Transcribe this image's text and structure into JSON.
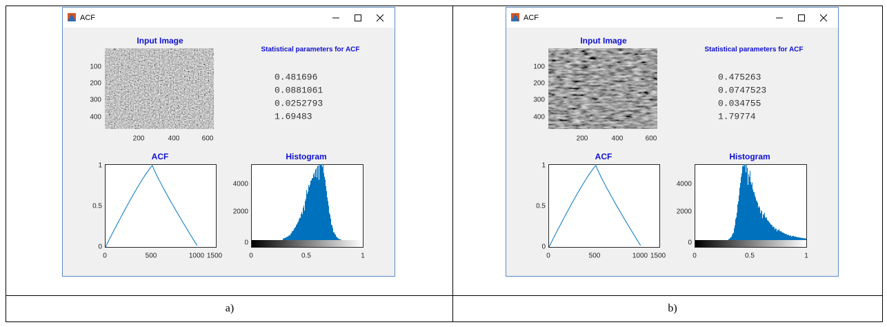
{
  "panels": [
    {
      "window_title": "ACF",
      "image_title": "Input Image",
      "image_yticks": [
        100,
        200,
        300,
        400
      ],
      "image_xticks": [
        200,
        400,
        600
      ],
      "stats_title": "Statistical parameters for ACF",
      "stats": [
        0.481696,
        0.0881061,
        0.0252793,
        1.69483
      ],
      "acf_title": "ACF",
      "acf_yticks": [
        1,
        0.5,
        0
      ],
      "acf_xticks": [
        0,
        500,
        1000,
        1500
      ],
      "hist_title": "Histogram",
      "hist_yticks": [
        4000,
        2000,
        0
      ],
      "hist_xticks": [
        0,
        0.5,
        1
      ],
      "caption": "a)"
    },
    {
      "window_title": "ACF",
      "image_title": "Input Image",
      "image_yticks": [
        100,
        200,
        300,
        400
      ],
      "image_xticks": [
        200,
        400,
        600
      ],
      "stats_title": "Statistical parameters for ACF",
      "stats": [
        0.475263,
        0.0747523,
        0.034755,
        1.79774
      ],
      "acf_title": "ACF",
      "acf_yticks": [
        1,
        0.5,
        0
      ],
      "acf_xticks": [
        0,
        500,
        1000,
        1500
      ],
      "hist_title": "Histogram",
      "hist_yticks": [
        4000,
        2000,
        0
      ],
      "hist_xticks": [
        0,
        0.5,
        1
      ],
      "caption": "b)"
    }
  ]
}
